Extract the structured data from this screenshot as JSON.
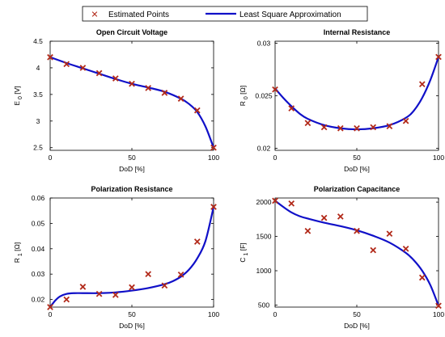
{
  "legend": {
    "points_label": "Estimated Points",
    "line_label": "Least Square Approximation",
    "marker_color": "#b22a1a",
    "line_color": "#1010c8"
  },
  "chart_data": [
    {
      "type": "scatter",
      "title": "Open Circuit Voltage",
      "xlabel": "DoD [%]",
      "ylabel": {
        "main": "E",
        "sub": "0",
        "unit": "[V]"
      },
      "xlim": [
        0,
        100
      ],
      "ylim": [
        2.45,
        4.5
      ],
      "xticks": [
        0,
        50,
        100
      ],
      "yticks": [
        2.5,
        3,
        3.5,
        4,
        4.5
      ],
      "ytick_labels": [
        "2.5",
        "3",
        "3.5",
        "4",
        "4.5"
      ],
      "grid": false,
      "series": [
        {
          "kind": "points",
          "x": [
            0,
            10,
            20,
            30,
            40,
            50,
            60,
            70,
            80,
            90,
            100
          ],
          "y": [
            4.2,
            4.07,
            4.0,
            3.9,
            3.8,
            3.7,
            3.62,
            3.53,
            3.42,
            3.2,
            2.5
          ]
        },
        {
          "kind": "line",
          "x": [
            0,
            10,
            20,
            30,
            40,
            50,
            60,
            70,
            80,
            85,
            90,
            95,
            100
          ],
          "y": [
            4.2,
            4.09,
            3.99,
            3.89,
            3.79,
            3.7,
            3.63,
            3.55,
            3.42,
            3.32,
            3.17,
            2.9,
            2.5
          ]
        }
      ]
    },
    {
      "type": "scatter",
      "title": "Internal Resistance",
      "xlabel": "DoD [%]",
      "ylabel": {
        "main": "R",
        "sub": "0",
        "unit": "[Ω]"
      },
      "xlim": [
        0,
        100
      ],
      "ylim": [
        0.0198,
        0.0302
      ],
      "xticks": [
        0,
        50,
        100
      ],
      "yticks": [
        0.02,
        0.025,
        0.03
      ],
      "ytick_labels": [
        "0.02",
        "0.025",
        "0.03"
      ],
      "grid": false,
      "series": [
        {
          "kind": "points",
          "x": [
            0,
            10,
            20,
            30,
            40,
            50,
            60,
            70,
            80,
            90,
            100
          ],
          "y": [
            0.0256,
            0.0238,
            0.0224,
            0.022,
            0.0219,
            0.0219,
            0.022,
            0.0221,
            0.0226,
            0.0261,
            0.0287
          ]
        },
        {
          "kind": "line",
          "x": [
            0,
            5,
            10,
            15,
            20,
            30,
            40,
            50,
            60,
            70,
            80,
            85,
            90,
            95,
            100
          ],
          "y": [
            0.0257,
            0.0248,
            0.024,
            0.0233,
            0.0228,
            0.0222,
            0.0219,
            0.0218,
            0.0219,
            0.0222,
            0.0229,
            0.0236,
            0.0248,
            0.0265,
            0.0287
          ]
        }
      ]
    },
    {
      "type": "scatter",
      "title": "Polarization Resistance",
      "xlabel": "DoD [%]",
      "ylabel": {
        "main": "R",
        "sub": "1",
        "unit": "[Ω]"
      },
      "xlim": [
        0,
        100
      ],
      "ylim": [
        0.017,
        0.06
      ],
      "xticks": [
        0,
        50,
        100
      ],
      "yticks": [
        0.02,
        0.03,
        0.04,
        0.05,
        0.06
      ],
      "ytick_labels": [
        "0.02",
        "0.03",
        "0.04",
        "0.05",
        "0.06"
      ],
      "grid": false,
      "series": [
        {
          "kind": "points",
          "x": [
            0,
            10,
            20,
            30,
            40,
            50,
            60,
            70,
            80,
            90,
            100
          ],
          "y": [
            0.017,
            0.02,
            0.025,
            0.0222,
            0.0218,
            0.0248,
            0.03,
            0.0255,
            0.0298,
            0.0428,
            0.0565
          ]
        },
        {
          "kind": "line",
          "x": [
            0,
            3,
            6,
            10,
            15,
            20,
            30,
            40,
            50,
            60,
            70,
            75,
            80,
            85,
            90,
            95,
            100
          ],
          "y": [
            0.017,
            0.0195,
            0.0212,
            0.0222,
            0.0225,
            0.0225,
            0.0225,
            0.0228,
            0.0235,
            0.0245,
            0.026,
            0.0272,
            0.029,
            0.0318,
            0.0362,
            0.043,
            0.0565
          ]
        }
      ]
    },
    {
      "type": "scatter",
      "title": "Polarization Capacitance",
      "xlabel": "DoD [%]",
      "ylabel": {
        "main": "C",
        "sub": "1",
        "unit": "[F]"
      },
      "xlim": [
        0,
        100
      ],
      "ylim": [
        470,
        2060
      ],
      "xticks": [
        0,
        50,
        100
      ],
      "yticks": [
        500,
        1000,
        1500,
        2000
      ],
      "ytick_labels": [
        "500",
        "1000",
        "1500",
        "2000"
      ],
      "grid": false,
      "series": [
        {
          "kind": "points",
          "x": [
            0,
            10,
            20,
            30,
            40,
            50,
            60,
            70,
            80,
            90,
            100
          ],
          "y": [
            2020,
            1980,
            1580,
            1770,
            1790,
            1580,
            1300,
            1540,
            1320,
            900,
            490
          ]
        },
        {
          "kind": "line",
          "x": [
            0,
            5,
            10,
            15,
            20,
            30,
            40,
            50,
            60,
            70,
            80,
            85,
            90,
            95,
            100
          ],
          "y": [
            2020,
            1930,
            1850,
            1795,
            1760,
            1700,
            1650,
            1590,
            1510,
            1410,
            1260,
            1150,
            1000,
            790,
            490
          ]
        }
      ]
    }
  ]
}
